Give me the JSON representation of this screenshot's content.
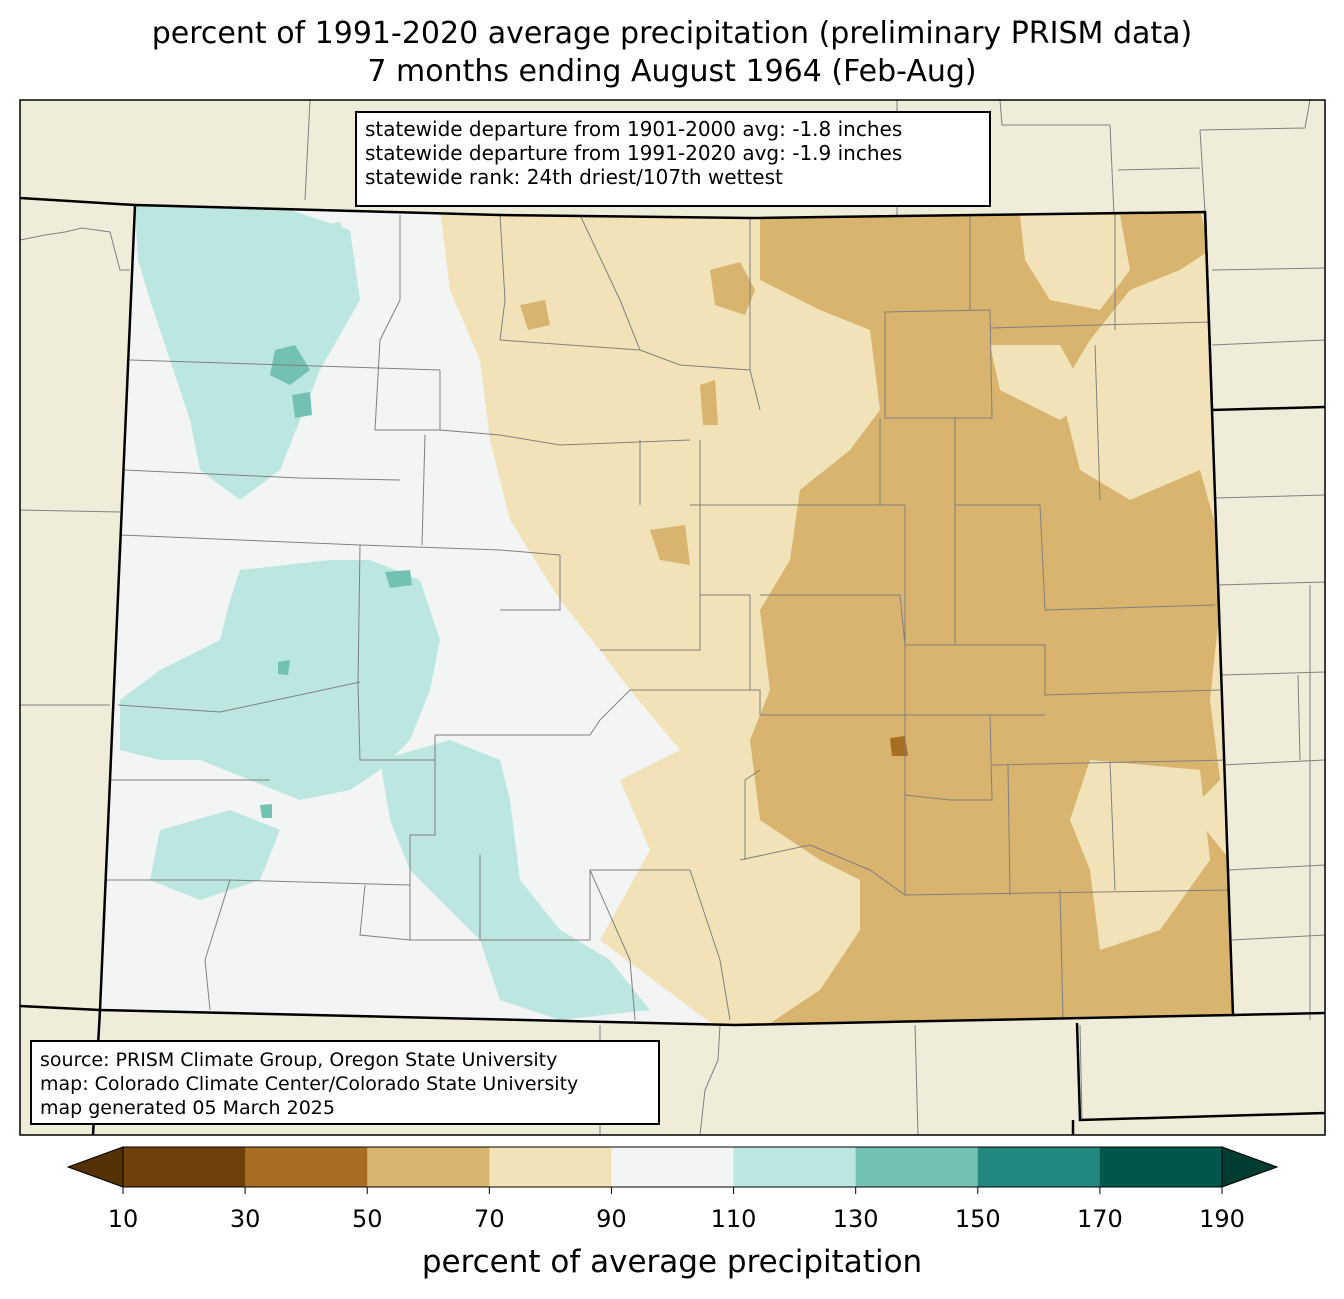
{
  "title": {
    "line1": "percent of 1991-2020 average precipitation (preliminary PRISM data)",
    "line2": "7 months ending August 1964 (Feb-Aug)"
  },
  "stats_box": {
    "lines": [
      "statewide departure from 1901-2000 avg: -1.8 inches",
      "statewide departure from 1991-2020 avg: -1.9 inches",
      "statewide rank: 24th driest/107th wettest"
    ]
  },
  "source_box": {
    "lines": [
      "source: PRISM Climate Group, Oregon State University",
      "map: Colorado Climate Center/Colorado State University",
      "map generated 05 March 2025"
    ]
  },
  "colorbar": {
    "label": "percent of average precipitation",
    "ticks": [
      "10",
      "30",
      "50",
      "70",
      "90",
      "110",
      "130",
      "150",
      "170",
      "190"
    ],
    "under_color": "#543005",
    "over_color": "#003c30",
    "colors": [
      "#70400a",
      "#a86d22",
      "#d8b46e",
      "#f2e2b8",
      "#f3f5f4",
      "#bce6e0",
      "#72c1b3",
      "#22877c",
      "#01564c"
    ]
  },
  "colors": {
    "background_land": "#efedda",
    "map_border": "#000000",
    "county_line": "#808080"
  }
}
